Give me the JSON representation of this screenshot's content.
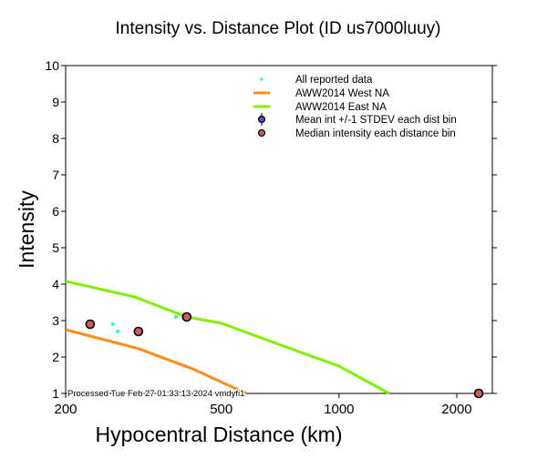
{
  "chart_data": {
    "type": "scatter",
    "title": "Intensity vs. Distance Plot (ID us7000luuy)",
    "xlabel": "Hypocentral Distance (km)",
    "ylabel": "Intensity",
    "xscale": "log",
    "xlim": [
      200,
      2466
    ],
    "ylim": [
      1,
      10
    ],
    "xticks": [
      200,
      500,
      1000,
      2000
    ],
    "yticks": [
      1,
      2,
      3,
      4,
      5,
      6,
      7,
      8,
      9,
      10
    ],
    "legend_position": "top-right",
    "colors": {
      "all": "#3dffa0",
      "west": "#ff8c1a",
      "east": "#80f000",
      "mean": "#5050c0",
      "median": "#c86060"
    },
    "legend": [
      "All reported data",
      "AWW2014 West NA",
      "AWW2014 East NA",
      "Mean int +/-1 STDEV each dist bin",
      "Median intensity each distance bin"
    ],
    "series": [
      {
        "name": "All reported data",
        "kind": "points",
        "x": [
          264,
          272,
          383
        ],
        "y": [
          2.9,
          2.7,
          3.1
        ]
      },
      {
        "name": "AWW2014 West NA",
        "kind": "line",
        "x": [
          200,
          307,
          421,
          580
        ],
        "y": [
          2.75,
          2.23,
          1.68,
          1.0
        ]
      },
      {
        "name": "AWW2014 East NA",
        "kind": "line",
        "x": [
          200,
          300,
          408,
          500,
          680,
          1000,
          1343
        ],
        "y": [
          4.08,
          3.65,
          3.1,
          2.93,
          2.4,
          1.75,
          1.0
        ]
      },
      {
        "name": "Median intensity each distance bin",
        "kind": "points",
        "x": [
          231,
          307,
          408,
          2276
        ],
        "y": [
          2.9,
          2.7,
          3.1,
          1.0
        ]
      }
    ],
    "annotation": "Processed Tue Feb 27 01:33:13 2024 vmdyfi1"
  }
}
